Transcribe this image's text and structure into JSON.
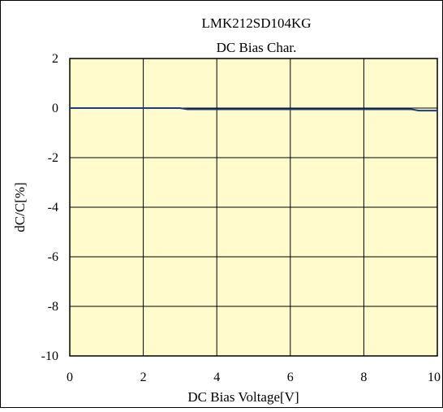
{
  "chart_data": {
    "type": "line",
    "title": "LMK212SD104KG",
    "subtitle": "DC Bias Char.",
    "xlabel": "DC Bias Voltage[V]",
    "ylabel": "dC/C[%]",
    "xlim": [
      0,
      10
    ],
    "ylim": [
      -10,
      2
    ],
    "x_ticks": [
      0,
      2,
      4,
      6,
      8,
      10
    ],
    "x_tick_labels": [
      "0",
      "2",
      "4",
      "6",
      "8",
      "10"
    ],
    "y_ticks": [
      2,
      0,
      -2,
      -4,
      -6,
      -8,
      -10
    ],
    "y_tick_labels": [
      "2",
      "0",
      "-2",
      "-4",
      "-6",
      "-8",
      "-10"
    ],
    "grid": true,
    "legend": "none",
    "series": [
      {
        "x": [
          0,
          1,
          2,
          3.0,
          3.2,
          4,
          5,
          6,
          7,
          8,
          9,
          9.3,
          9.5,
          10
        ],
        "values": [
          0,
          0,
          0,
          0,
          -0.05,
          -0.05,
          -0.05,
          -0.05,
          -0.05,
          -0.05,
          -0.05,
          -0.05,
          -0.1,
          -0.1
        ]
      }
    ],
    "colors": {
      "plot_background": "#FFFBCC",
      "line": "#1F3D7A",
      "grid": "#000000",
      "frame": "#000000"
    }
  }
}
